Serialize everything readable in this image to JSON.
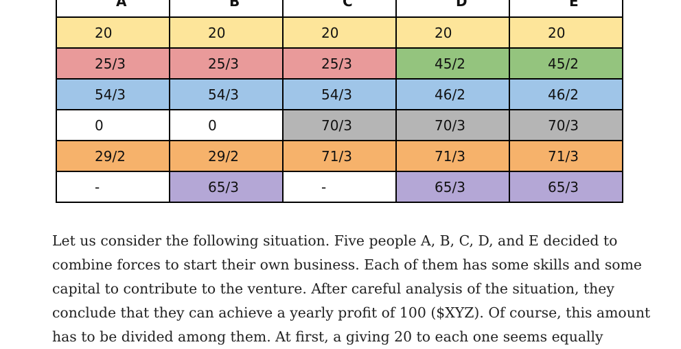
{
  "table": {
    "headers": [
      "A",
      "B",
      "C",
      "D",
      "E"
    ],
    "rows": [
      [
        "20",
        "20",
        "20",
        "20",
        "20"
      ],
      [
        "25/3",
        "25/3",
        "25/3",
        "45/2",
        "45/2"
      ],
      [
        "54/3",
        "54/3",
        "54/3",
        "46/2",
        "46/2"
      ],
      [
        "0",
        "0",
        "70/3",
        "70/3",
        "70/3"
      ],
      [
        "29/2",
        "29/2",
        "71/3",
        "71/3",
        "71/3"
      ],
      [
        "-",
        "65/3",
        "-",
        "65/3",
        "65/3"
      ]
    ],
    "colors": {
      "yellow": "#fde59a",
      "red": "#e99a9a",
      "green": "#94c47e",
      "blue": "#9fc5e8",
      "white": "#ffffff",
      "gray": "#b5b5b5",
      "orange": "#f6b26b",
      "purple": "#b4a7d6"
    }
  },
  "paragraph": {
    "lines": [
      "Let us consider the following situation. Five people A, B, C, D, and E decided to",
      "combine forces to start their own business. Each of them has some skills and some",
      "capital to contribute to the venture. After careful analysis of the situation, they",
      "conclude that they can achieve a yearly profit of 100 ($XYZ). Of course, this amount",
      "has to be divided among them. At first, a giving 20 to each one seems equally"
    ]
  }
}
